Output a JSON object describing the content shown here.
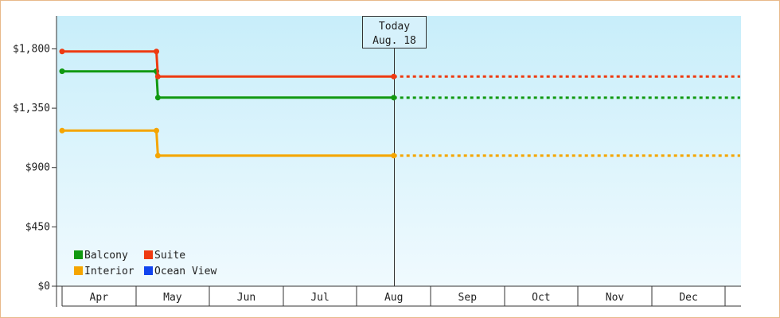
{
  "chart_data": {
    "type": "line",
    "step": true,
    "x_axis": {
      "categories": [
        "Apr",
        "May",
        "Jun",
        "Jul",
        "Aug",
        "Sep",
        "Oct",
        "Nov",
        "Dec"
      ]
    },
    "y_axis": {
      "ylim": [
        0,
        2050
      ],
      "ticks": [
        0,
        450,
        900,
        1350,
        1800
      ],
      "tick_labels": [
        "$0",
        "$450",
        "$900",
        "$1,350",
        "$1,800"
      ]
    },
    "today_marker": {
      "line1": "Today",
      "line2": "Aug. 18",
      "month_index": 4.5
    },
    "series": [
      {
        "name": "Balcony",
        "color": "#119911",
        "points": [
          [
            0,
            1630
          ],
          [
            1.28,
            1630
          ],
          [
            1.3,
            1430
          ],
          [
            4.5,
            1430
          ]
        ],
        "projected_to": 9.2
      },
      {
        "name": "Suite",
        "color": "#ee3a11",
        "points": [
          [
            0,
            1780
          ],
          [
            1.28,
            1780
          ],
          [
            1.3,
            1590
          ],
          [
            4.5,
            1590
          ]
        ],
        "projected_to": 9.2
      },
      {
        "name": "Interior",
        "color": "#f5a500",
        "points": [
          [
            0,
            1180
          ],
          [
            1.28,
            1180
          ],
          [
            1.3,
            990
          ],
          [
            4.5,
            990
          ]
        ],
        "projected_to": 9.2
      },
      {
        "name": "Ocean View",
        "color": "#1144ee",
        "points": [],
        "projected_to": null
      }
    ],
    "legend": {
      "placement": "bottom-left",
      "items": [
        {
          "name": "Balcony",
          "color": "#119911"
        },
        {
          "name": "Suite",
          "color": "#ee3a11"
        },
        {
          "name": "Interior",
          "color": "#f5a500"
        },
        {
          "name": "Ocean View",
          "color": "#1144ee"
        }
      ]
    },
    "background": {
      "top": "#c8eefa",
      "bottom": "#f0fafe"
    }
  }
}
